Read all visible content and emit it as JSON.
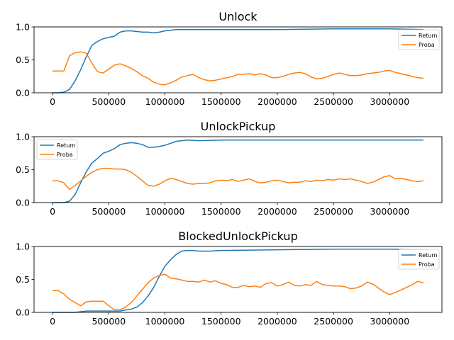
{
  "chart_data": [
    {
      "type": "line",
      "title": "Unlock",
      "xlabel": "",
      "ylabel": "",
      "xlim": [
        -165000,
        3465000
      ],
      "ylim": [
        0,
        1.0
      ],
      "xticks": [
        0,
        500000,
        1000000,
        1500000,
        2000000,
        2500000,
        3000000
      ],
      "xtick_labels": [
        "0",
        "500000",
        "1000000",
        "1500000",
        "2000000",
        "2500000",
        "3000000"
      ],
      "yticks": [
        0.0,
        0.5,
        1.0
      ],
      "ytick_labels": [
        "0.0",
        "0.5",
        "1.0"
      ],
      "legend_position": "top-right",
      "grid": false,
      "series": [
        {
          "name": "Return",
          "color": "#1f77b4",
          "x": [
            0,
            50000,
            100000,
            150000,
            200000,
            250000,
            300000,
            350000,
            400000,
            450000,
            500000,
            550000,
            600000,
            650000,
            700000,
            750000,
            800000,
            850000,
            900000,
            950000,
            1000000,
            1050000,
            1100000,
            1200000,
            1500000,
            2000000,
            2500000,
            3000000,
            3300000
          ],
          "y": [
            0.0,
            0.0,
            0.01,
            0.05,
            0.18,
            0.35,
            0.55,
            0.72,
            0.78,
            0.82,
            0.84,
            0.86,
            0.92,
            0.94,
            0.94,
            0.93,
            0.92,
            0.92,
            0.91,
            0.92,
            0.94,
            0.95,
            0.96,
            0.96,
            0.96,
            0.96,
            0.97,
            0.97,
            0.96
          ]
        },
        {
          "name": "Proba",
          "color": "#ff7f0e",
          "x": [
            0,
            50000,
            100000,
            150000,
            200000,
            250000,
            300000,
            350000,
            400000,
            450000,
            500000,
            550000,
            600000,
            650000,
            700000,
            750000,
            800000,
            850000,
            900000,
            950000,
            1000000,
            1050000,
            1100000,
            1150000,
            1200000,
            1250000,
            1300000,
            1350000,
            1400000,
            1450000,
            1500000,
            1550000,
            1600000,
            1650000,
            1700000,
            1750000,
            1800000,
            1850000,
            1900000,
            1950000,
            2000000,
            2050000,
            2100000,
            2150000,
            2200000,
            2250000,
            2300000,
            2350000,
            2400000,
            2450000,
            2500000,
            2550000,
            2600000,
            2650000,
            2700000,
            2750000,
            2800000,
            2850000,
            2900000,
            2950000,
            3000000,
            3050000,
            3100000,
            3150000,
            3200000,
            3250000,
            3300000
          ],
          "y": [
            0.33,
            0.33,
            0.33,
            0.56,
            0.61,
            0.62,
            0.6,
            0.45,
            0.32,
            0.3,
            0.36,
            0.42,
            0.44,
            0.41,
            0.37,
            0.32,
            0.26,
            0.22,
            0.16,
            0.13,
            0.12,
            0.15,
            0.19,
            0.24,
            0.26,
            0.28,
            0.23,
            0.2,
            0.18,
            0.19,
            0.21,
            0.23,
            0.25,
            0.28,
            0.28,
            0.29,
            0.27,
            0.29,
            0.27,
            0.23,
            0.23,
            0.25,
            0.28,
            0.3,
            0.31,
            0.29,
            0.24,
            0.21,
            0.22,
            0.25,
            0.28,
            0.3,
            0.28,
            0.26,
            0.26,
            0.27,
            0.29,
            0.3,
            0.31,
            0.33,
            0.34,
            0.31,
            0.29,
            0.27,
            0.25,
            0.23,
            0.22
          ]
        }
      ]
    },
    {
      "type": "line",
      "title": "UnlockPickup",
      "xlabel": "",
      "ylabel": "",
      "xlim": [
        -165000,
        3465000
      ],
      "ylim": [
        0,
        1.0
      ],
      "xticks": [
        0,
        500000,
        1000000,
        1500000,
        2000000,
        2500000,
        3000000
      ],
      "xtick_labels": [
        "0",
        "500000",
        "1000000",
        "1500000",
        "2000000",
        "2500000",
        "3000000"
      ],
      "yticks": [
        0.0,
        0.5,
        1.0
      ],
      "ytick_labels": [
        "0.0",
        "0.5",
        "1.0"
      ],
      "legend_position": "top-left",
      "grid": false,
      "series": [
        {
          "name": "Return",
          "color": "#1f77b4",
          "x": [
            0,
            100000,
            150000,
            200000,
            250000,
            300000,
            350000,
            400000,
            450000,
            500000,
            550000,
            600000,
            650000,
            700000,
            750000,
            800000,
            850000,
            900000,
            950000,
            1000000,
            1050000,
            1100000,
            1150000,
            1200000,
            1300000,
            1500000,
            2000000,
            2500000,
            3000000,
            3300000
          ],
          "y": [
            0.0,
            0.0,
            0.02,
            0.12,
            0.3,
            0.47,
            0.6,
            0.67,
            0.75,
            0.78,
            0.82,
            0.88,
            0.9,
            0.91,
            0.9,
            0.88,
            0.84,
            0.84,
            0.85,
            0.87,
            0.9,
            0.93,
            0.94,
            0.95,
            0.94,
            0.95,
            0.95,
            0.95,
            0.95,
            0.95
          ]
        },
        {
          "name": "Proba",
          "color": "#ff7f0e",
          "x": [
            0,
            50000,
            100000,
            150000,
            200000,
            250000,
            300000,
            350000,
            400000,
            450000,
            500000,
            550000,
            600000,
            650000,
            700000,
            750000,
            800000,
            850000,
            900000,
            950000,
            1000000,
            1050000,
            1100000,
            1150000,
            1200000,
            1250000,
            1300000,
            1350000,
            1400000,
            1450000,
            1500000,
            1550000,
            1600000,
            1650000,
            1700000,
            1750000,
            1800000,
            1850000,
            1900000,
            1950000,
            2000000,
            2050000,
            2100000,
            2150000,
            2200000,
            2250000,
            2300000,
            2350000,
            2400000,
            2450000,
            2500000,
            2550000,
            2600000,
            2650000,
            2700000,
            2750000,
            2800000,
            2850000,
            2900000,
            2950000,
            3000000,
            3050000,
            3100000,
            3150000,
            3200000,
            3250000,
            3300000
          ],
          "y": [
            0.33,
            0.33,
            0.3,
            0.2,
            0.26,
            0.33,
            0.4,
            0.46,
            0.5,
            0.52,
            0.52,
            0.51,
            0.51,
            0.5,
            0.46,
            0.4,
            0.33,
            0.26,
            0.25,
            0.28,
            0.33,
            0.37,
            0.35,
            0.32,
            0.29,
            0.28,
            0.29,
            0.29,
            0.3,
            0.33,
            0.34,
            0.33,
            0.35,
            0.32,
            0.34,
            0.36,
            0.32,
            0.3,
            0.31,
            0.33,
            0.34,
            0.32,
            0.3,
            0.31,
            0.31,
            0.33,
            0.32,
            0.34,
            0.33,
            0.35,
            0.34,
            0.36,
            0.35,
            0.36,
            0.34,
            0.32,
            0.29,
            0.31,
            0.35,
            0.39,
            0.41,
            0.36,
            0.37,
            0.35,
            0.33,
            0.32,
            0.33
          ]
        }
      ]
    },
    {
      "type": "line",
      "title": "BlockedUnlockPickup",
      "xlabel": "",
      "ylabel": "",
      "xlim": [
        -165000,
        3465000
      ],
      "ylim": [
        0,
        1.0
      ],
      "xticks": [
        0,
        500000,
        1000000,
        1500000,
        2000000,
        2500000,
        3000000
      ],
      "xtick_labels": [
        "0",
        "500000",
        "1000000",
        "1500000",
        "2000000",
        "2500000",
        "3000000"
      ],
      "yticks": [
        0.0,
        0.5,
        1.0
      ],
      "ytick_labels": [
        "0.0",
        "0.5",
        "1.0"
      ],
      "legend_position": "top-right",
      "grid": false,
      "series": [
        {
          "name": "Return",
          "color": "#1f77b4",
          "x": [
            0,
            200000,
            300000,
            400000,
            500000,
            600000,
            700000,
            750000,
            800000,
            850000,
            900000,
            950000,
            1000000,
            1050000,
            1100000,
            1150000,
            1200000,
            1250000,
            1300000,
            1400000,
            1500000,
            2000000,
            2500000,
            3000000,
            3300000
          ],
          "y": [
            0.0,
            0.0,
            0.02,
            0.02,
            0.02,
            0.02,
            0.05,
            0.08,
            0.15,
            0.25,
            0.38,
            0.55,
            0.7,
            0.8,
            0.88,
            0.93,
            0.94,
            0.94,
            0.93,
            0.93,
            0.94,
            0.95,
            0.96,
            0.96,
            0.95
          ]
        },
        {
          "name": "Proba",
          "color": "#ff7f0e",
          "x": [
            0,
            50000,
            100000,
            150000,
            200000,
            250000,
            300000,
            350000,
            400000,
            450000,
            500000,
            550000,
            600000,
            650000,
            700000,
            750000,
            800000,
            850000,
            900000,
            950000,
            1000000,
            1050000,
            1100000,
            1150000,
            1200000,
            1250000,
            1300000,
            1350000,
            1400000,
            1450000,
            1500000,
            1550000,
            1600000,
            1650000,
            1700000,
            1750000,
            1800000,
            1850000,
            1900000,
            1950000,
            2000000,
            2050000,
            2100000,
            2150000,
            2200000,
            2250000,
            2300000,
            2350000,
            2400000,
            2450000,
            2500000,
            2550000,
            2600000,
            2650000,
            2700000,
            2750000,
            2800000,
            2850000,
            2900000,
            2950000,
            3000000,
            3050000,
            3100000,
            3150000,
            3200000,
            3250000,
            3300000
          ],
          "y": [
            0.33,
            0.33,
            0.28,
            0.2,
            0.15,
            0.1,
            0.16,
            0.17,
            0.17,
            0.17,
            0.1,
            0.04,
            0.04,
            0.08,
            0.15,
            0.25,
            0.35,
            0.45,
            0.52,
            0.56,
            0.58,
            0.52,
            0.51,
            0.49,
            0.47,
            0.47,
            0.46,
            0.49,
            0.46,
            0.48,
            0.44,
            0.42,
            0.38,
            0.38,
            0.41,
            0.39,
            0.4,
            0.38,
            0.44,
            0.45,
            0.4,
            0.42,
            0.46,
            0.41,
            0.4,
            0.42,
            0.41,
            0.47,
            0.42,
            0.41,
            0.4,
            0.4,
            0.39,
            0.36,
            0.37,
            0.4,
            0.46,
            0.43,
            0.37,
            0.31,
            0.27,
            0.3,
            0.34,
            0.38,
            0.42,
            0.47,
            0.45
          ]
        }
      ]
    }
  ]
}
